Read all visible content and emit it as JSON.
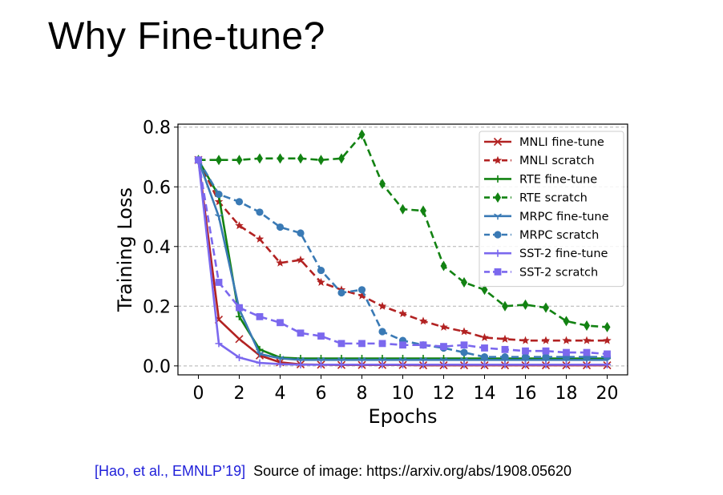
{
  "slide": {
    "title": "Why Fine-tune?",
    "citation": "[Hao, et al., EMNLP’19]",
    "source": "Source of image: https://arxiv.org/abs/1908.05620"
  },
  "chart_data": {
    "type": "line",
    "xlabel": "Epochs",
    "ylabel": "Training Loss",
    "xlim": [
      -1,
      21
    ],
    "ylim": [
      -0.03,
      0.81
    ],
    "xticks": [
      0,
      2,
      4,
      6,
      8,
      10,
      12,
      14,
      16,
      18,
      20
    ],
    "yticks": [
      0.0,
      0.2,
      0.4,
      0.6,
      0.8
    ],
    "ytick_labels": [
      "0.0",
      "0.2",
      "0.4",
      "0.6",
      "0.8"
    ],
    "grid": "horizontal dashed",
    "legend_position": "top-right",
    "x": [
      0,
      1,
      2,
      3,
      4,
      5,
      6,
      7,
      8,
      9,
      10,
      11,
      12,
      13,
      14,
      15,
      16,
      17,
      18,
      19,
      20
    ],
    "series": [
      {
        "name": "MNLI fine-tune",
        "color": "#b22222",
        "dashed": false,
        "marker": "x",
        "values": [
          0.69,
          0.155,
          0.09,
          0.035,
          0.012,
          0.005,
          0.004,
          0.003,
          0.003,
          0.003,
          0.003,
          0.002,
          0.002,
          0.002,
          0.002,
          0.002,
          0.002,
          0.002,
          0.002,
          0.002,
          0.002
        ]
      },
      {
        "name": "MNLI scratch",
        "color": "#b22222",
        "dashed": true,
        "marker": "star",
        "values": [
          0.69,
          0.55,
          0.47,
          0.425,
          0.345,
          0.355,
          0.28,
          0.255,
          0.235,
          0.2,
          0.175,
          0.15,
          0.13,
          0.115,
          0.095,
          0.09,
          0.085,
          0.085,
          0.085,
          0.085,
          0.085
        ]
      },
      {
        "name": "RTE fine-tune",
        "color": "#128212",
        "dashed": false,
        "marker": "plus",
        "values": [
          0.69,
          0.57,
          0.165,
          0.055,
          0.028,
          0.025,
          0.025,
          0.025,
          0.025,
          0.025,
          0.025,
          0.025,
          0.025,
          0.025,
          0.025,
          0.025,
          0.025,
          0.025,
          0.025,
          0.025,
          0.025
        ]
      },
      {
        "name": "RTE scratch",
        "color": "#128212",
        "dashed": true,
        "marker": "diamond",
        "values": [
          0.69,
          0.69,
          0.69,
          0.695,
          0.695,
          0.695,
          0.69,
          0.695,
          0.775,
          0.61,
          0.525,
          0.52,
          0.335,
          0.28,
          0.255,
          0.2,
          0.205,
          0.195,
          0.15,
          0.135,
          0.13
        ]
      },
      {
        "name": "MRPC fine-tune",
        "color": "#3a7ab5",
        "dashed": false,
        "marker": "tri",
        "values": [
          0.69,
          0.5,
          0.19,
          0.04,
          0.025,
          0.02,
          0.02,
          0.02,
          0.02,
          0.02,
          0.02,
          0.02,
          0.02,
          0.02,
          0.02,
          0.02,
          0.02,
          0.02,
          0.02,
          0.02,
          0.02
        ]
      },
      {
        "name": "MRPC scratch",
        "color": "#3a7ab5",
        "dashed": true,
        "marker": "circle",
        "values": [
          0.69,
          0.575,
          0.55,
          0.515,
          0.465,
          0.445,
          0.32,
          0.245,
          0.255,
          0.115,
          0.085,
          0.07,
          0.06,
          0.045,
          0.03,
          0.03,
          0.03,
          0.03,
          0.03,
          0.03,
          0.03
        ]
      },
      {
        "name": "SST-2 fine-tune",
        "color": "#7b68ee",
        "dashed": false,
        "marker": "plus",
        "values": [
          0.69,
          0.075,
          0.028,
          0.01,
          0.006,
          0.004,
          0.004,
          0.004,
          0.004,
          0.004,
          0.004,
          0.004,
          0.004,
          0.004,
          0.004,
          0.004,
          0.004,
          0.004,
          0.004,
          0.004,
          0.004
        ]
      },
      {
        "name": "SST-2 scratch",
        "color": "#7b68ee",
        "dashed": true,
        "marker": "square",
        "values": [
          0.69,
          0.28,
          0.195,
          0.165,
          0.145,
          0.11,
          0.1,
          0.075,
          0.075,
          0.075,
          0.07,
          0.07,
          0.065,
          0.07,
          0.06,
          0.055,
          0.05,
          0.05,
          0.045,
          0.045,
          0.04
        ]
      }
    ]
  }
}
